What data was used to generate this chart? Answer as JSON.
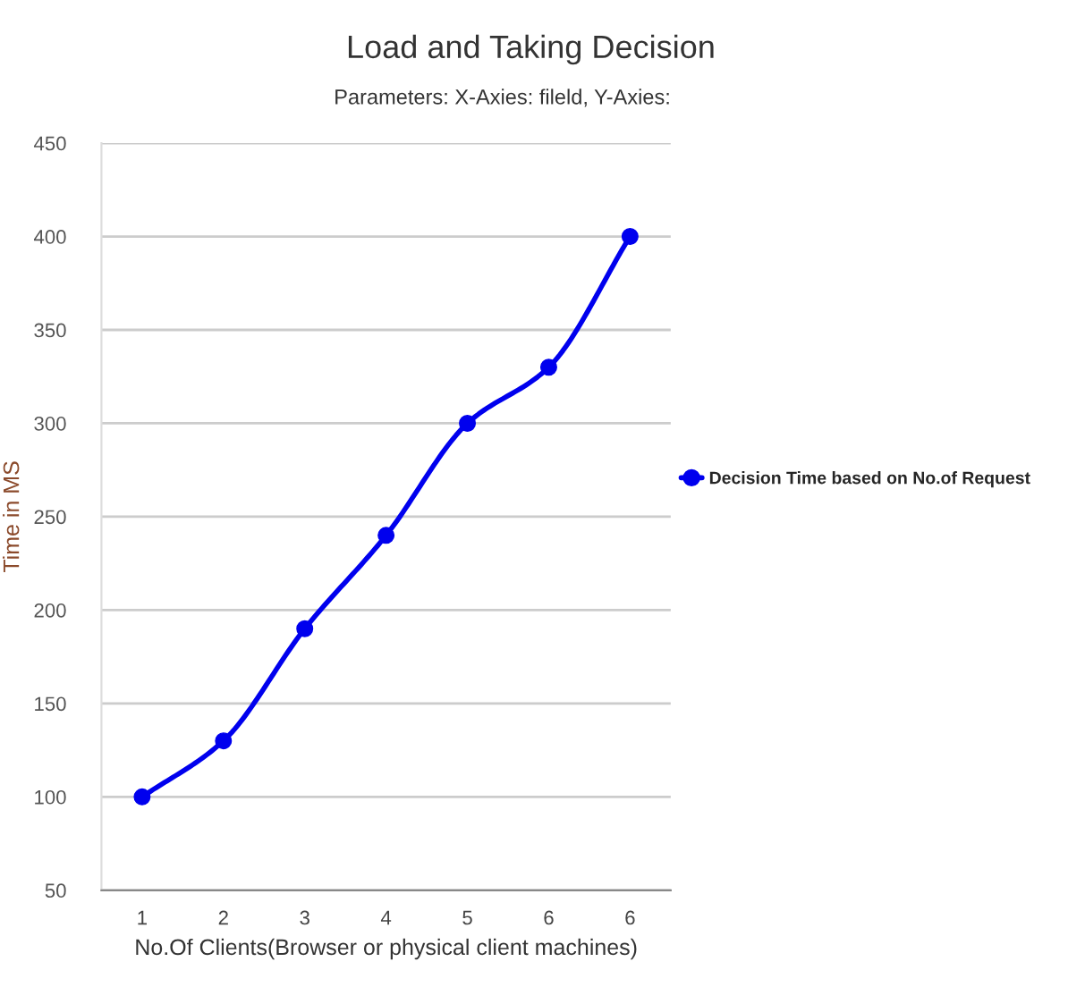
{
  "chart_data": {
    "type": "line",
    "title": "Load and Taking Decision",
    "subtitle": "Parameters: X-Axies: fileld, Y-Axies:",
    "xlabel": "No.Of Clients(Browser or physical client machines)",
    "ylabel": "Time in MS",
    "categories": [
      "1",
      "2",
      "3",
      "4",
      "5",
      "6",
      "6"
    ],
    "series": [
      {
        "name": "Decision Time based on No.of Request",
        "color": "#0000ee",
        "values": [
          100,
          130,
          190,
          240,
          300,
          330,
          400
        ]
      }
    ],
    "ylim": [
      50,
      450
    ],
    "yticks": [
      50,
      100,
      150,
      200,
      250,
      300,
      350,
      400,
      450
    ],
    "grid": "y",
    "legend": "right",
    "marker": "circle",
    "line_style": "solid"
  }
}
